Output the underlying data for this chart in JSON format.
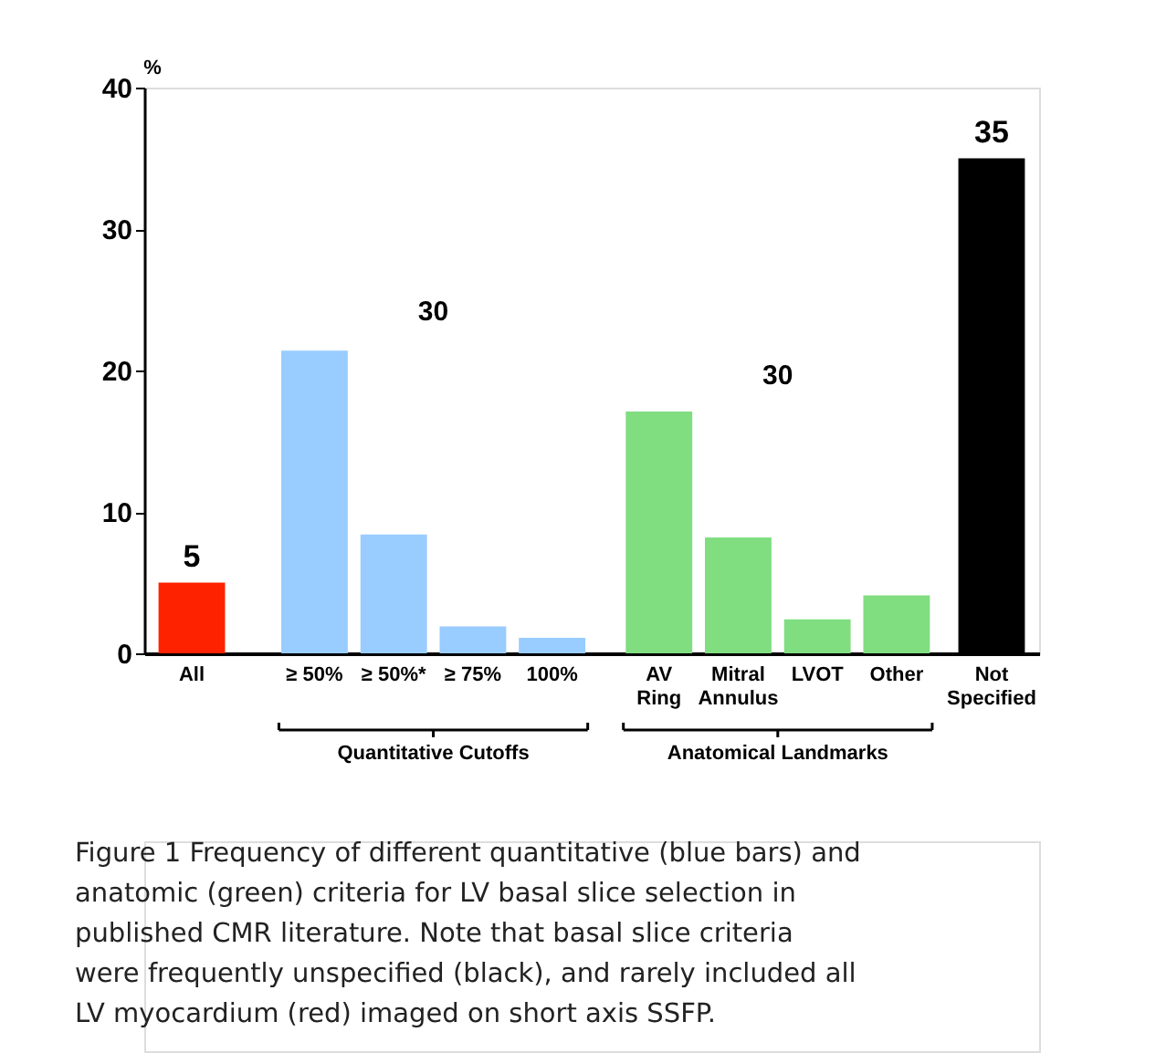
{
  "chart_data": {
    "type": "bar",
    "categories": [
      "All",
      "≥ 50%",
      "≥ 50%*",
      "≥ 75%",
      "100%",
      "AV Ring",
      "Mitral Annulus",
      "LVOT",
      "Other",
      "Not Specified"
    ],
    "values": [
      5,
      21.4,
      8.4,
      1.9,
      1.1,
      17.1,
      8.2,
      2.4,
      4.1,
      35
    ],
    "colors": [
      "#ff2200",
      "#99ccff",
      "#99ccff",
      "#99ccff",
      "#99ccff",
      "#80dd80",
      "#80dd80",
      "#80dd80",
      "#80dd80",
      "#000000"
    ],
    "value_labels": [
      "5",
      null,
      null,
      null,
      null,
      null,
      null,
      null,
      null,
      "35"
    ],
    "ylabel": "%",
    "ylim": [
      0,
      40
    ],
    "yticks": [
      0,
      10,
      20,
      30,
      40
    ],
    "grid": false,
    "annotations": [
      "30",
      "30",
      "Quantitative Cutoffs",
      "Anatomical Landmarks",
      "Figure 1 Frequency of different quantitative (blue bars) and anatomic (green) criteria for LV basal slice selection in published CMR literature. Note that basal slice criteria were frequently unspecified (black), and rarely included all LV myocardium (red) imaged on short axis SSFP."
    ]
  }
}
